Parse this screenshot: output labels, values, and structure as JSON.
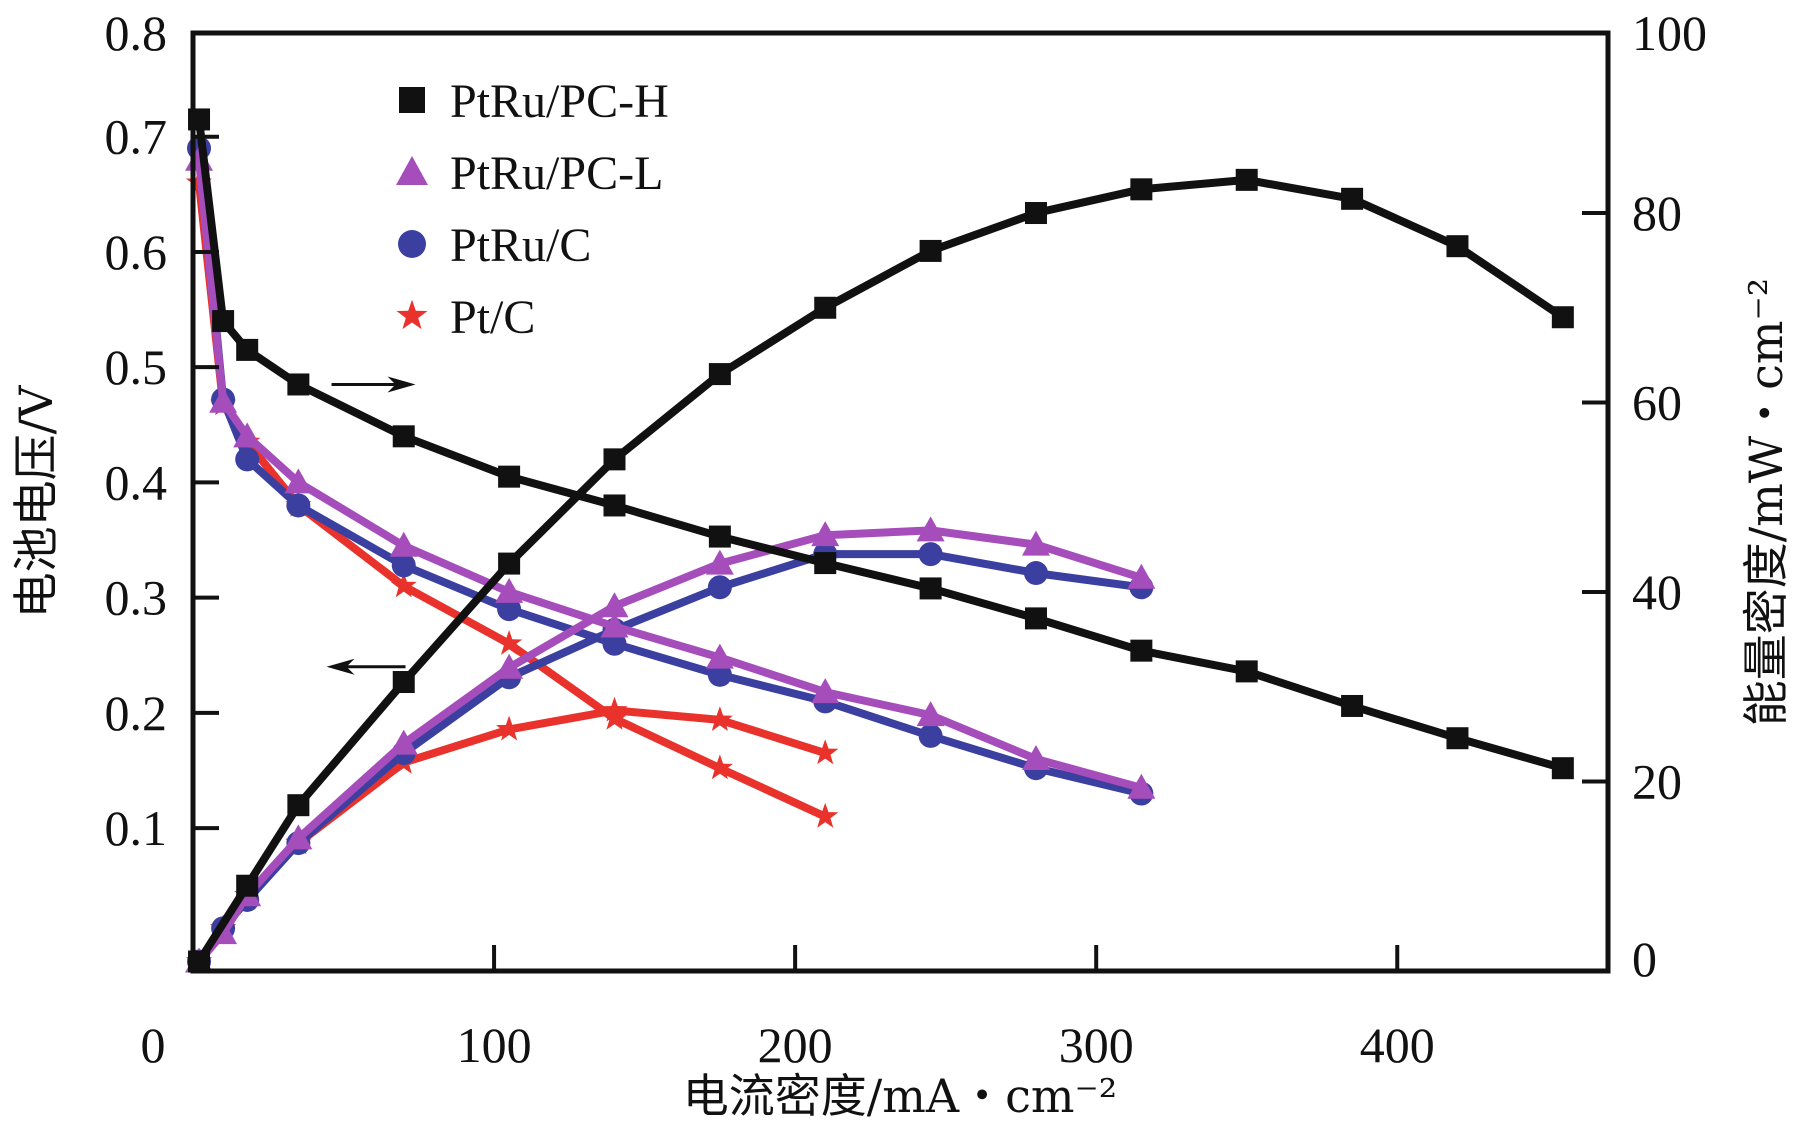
{
  "chart_data": {
    "type": "line",
    "title": "",
    "xlabel": "电流密度/mA・cm⁻²",
    "ylabel_left": "电池电压/V",
    "ylabel_right": "能量密度/mW・cm⁻²",
    "xlim": [
      0,
      470
    ],
    "ylim_left": [
      -0.024,
      0.79
    ],
    "ylim_right": [
      0,
      99
    ],
    "x_ticks": [
      0,
      100,
      200,
      300,
      400
    ],
    "y_ticks_left": [
      0.1,
      0.2,
      0.3,
      0.4,
      0.5,
      0.6,
      0.7,
      0.8
    ],
    "y_tick_labels_left": [
      "0.1",
      "0.2",
      "0.3",
      "0.4",
      "0.5",
      "0.6",
      "0.7",
      "0.8"
    ],
    "y_ticks_right": [
      0,
      20,
      40,
      60,
      80,
      100
    ],
    "grid": false,
    "legend_position": "top-left",
    "annotations": [
      {
        "text": "→",
        "meaning": "arrow pointing to right axis (power density curves)",
        "x": 50,
        "y_left": 0.485
      },
      {
        "text": "←",
        "meaning": "arrow pointing to left axis (voltage curves)",
        "x": 50,
        "y_left": 0.24
      }
    ],
    "series": [
      {
        "name": "PtRu/PC-H",
        "marker": "square",
        "color": "#111111",
        "voltage": {
          "x": [
            2,
            10,
            18,
            35,
            70,
            105,
            140,
            175,
            210,
            245,
            280,
            315,
            350,
            385,
            420,
            455
          ],
          "y": [
            0.715,
            0.54,
            0.515,
            0.485,
            0.44,
            0.405,
            0.38,
            0.353,
            0.33,
            0.308,
            0.282,
            0.254,
            0.236,
            0.206,
            0.178,
            0.152
          ]
        },
        "power": {
          "x": [
            2,
            18,
            35,
            70,
            105,
            140,
            175,
            210,
            245,
            280,
            315,
            350,
            385,
            420,
            455
          ],
          "y": [
            1,
            9,
            17.5,
            30.5,
            43,
            54,
            63,
            70,
            76,
            80,
            82.5,
            83.5,
            81.5,
            76.5,
            69
          ]
        }
      },
      {
        "name": "PtRu/PC-L",
        "marker": "triangle",
        "color": "#a64dbc",
        "voltage": {
          "x": [
            2,
            10,
            18,
            35,
            70,
            105,
            140,
            175,
            210,
            245,
            280,
            315
          ],
          "y": [
            0.68,
            0.47,
            0.44,
            0.4,
            0.345,
            0.305,
            0.275,
            0.248,
            0.218,
            0.198,
            0.16,
            0.135
          ]
        },
        "power": {
          "x": [
            2,
            10,
            18,
            35,
            70,
            105,
            140,
            175,
            210,
            245,
            280,
            315
          ],
          "y": [
            1,
            4,
            8,
            14,
            24,
            32,
            38.5,
            43,
            46,
            46.5,
            45,
            41.5
          ]
        }
      },
      {
        "name": "PtRu/C",
        "marker": "circle",
        "color": "#3b3fa0",
        "voltage": {
          "x": [
            2,
            10,
            18,
            35,
            70,
            105,
            140,
            175,
            210,
            245,
            280,
            315
          ],
          "y": [
            0.69,
            0.472,
            0.42,
            0.38,
            0.328,
            0.29,
            0.26,
            0.233,
            0.21,
            0.18,
            0.152,
            0.13
          ]
        },
        "power": {
          "x": [
            2,
            10,
            18,
            35,
            70,
            105,
            140,
            175,
            210,
            245,
            280,
            315
          ],
          "y": [
            1,
            4.5,
            7.5,
            13.5,
            23,
            31,
            36,
            40.5,
            44,
            44,
            42,
            40.5
          ]
        }
      },
      {
        "name": "Pt/C",
        "marker": "star",
        "color": "#e8322b",
        "voltage": {
          "x": [
            2,
            10,
            18,
            35,
            70,
            105,
            140,
            175,
            210
          ],
          "y": [
            0.66,
            0.468,
            0.435,
            0.38,
            0.31,
            0.26,
            0.195,
            0.152,
            0.11
          ]
        },
        "power": {
          "x": [
            2,
            10,
            18,
            35,
            70,
            105,
            140,
            175,
            210
          ],
          "y": [
            1,
            4.5,
            8,
            13.5,
            22,
            25.5,
            27.5,
            26.5,
            23
          ]
        }
      }
    ]
  }
}
